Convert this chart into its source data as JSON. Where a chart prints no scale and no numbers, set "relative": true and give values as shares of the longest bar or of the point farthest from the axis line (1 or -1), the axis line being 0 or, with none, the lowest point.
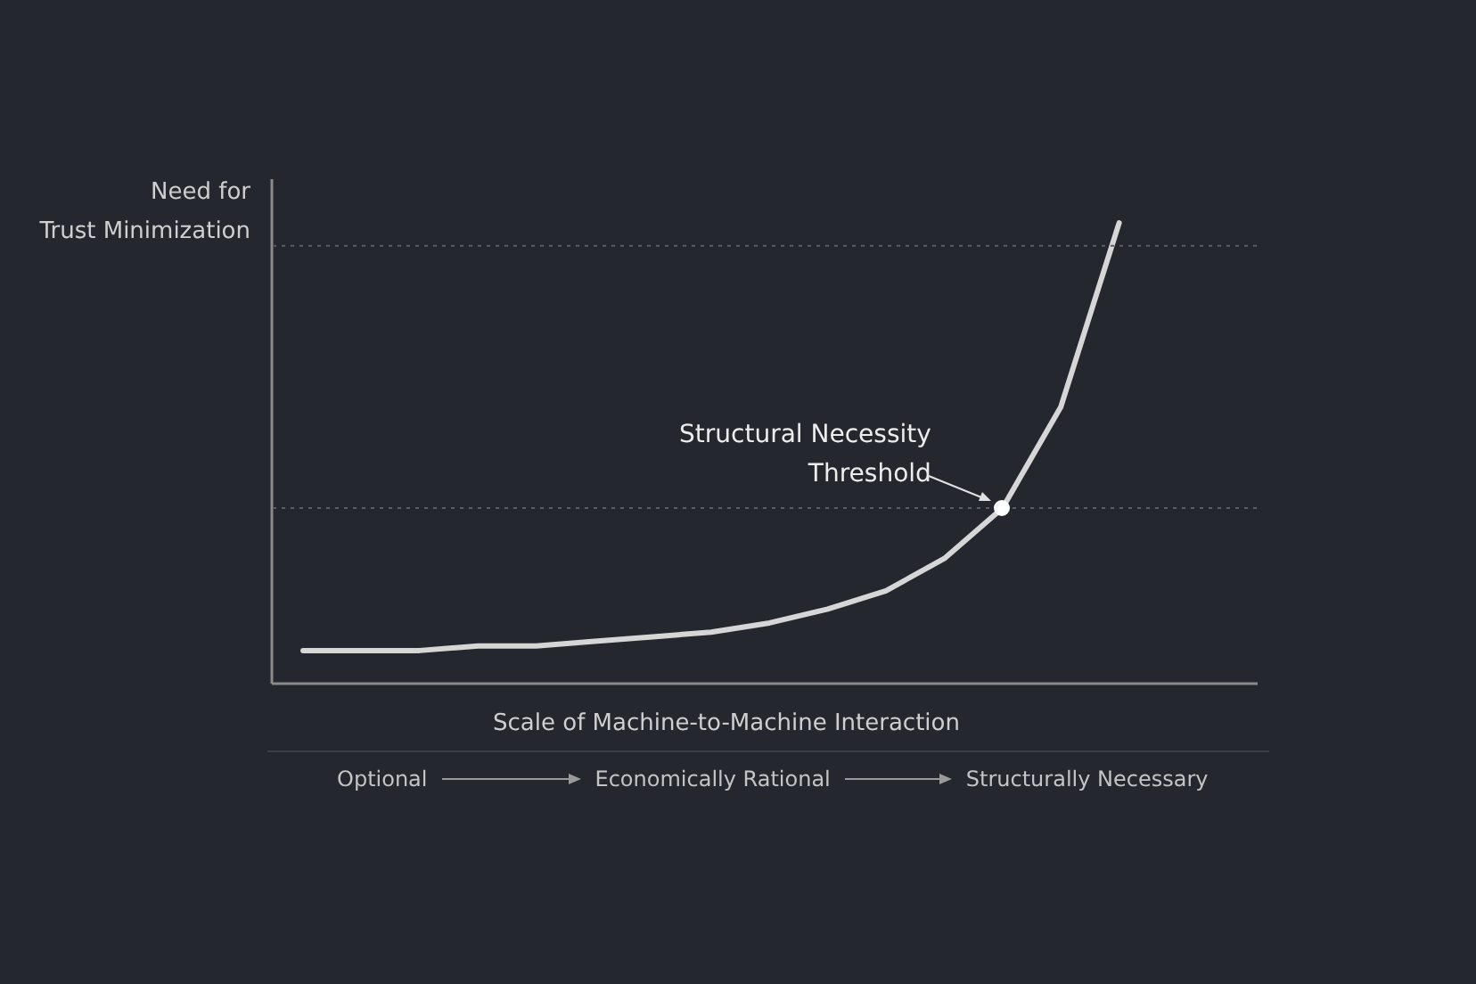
{
  "chart_data": {
    "type": "line",
    "relative": true,
    "xlabel": "Scale of Machine-to-Machine Interaction",
    "ylabel": "Need for\nTrust Minimization",
    "categories": [
      null,
      null,
      null,
      null,
      null,
      null,
      null,
      null,
      null,
      null,
      null,
      null,
      null,
      null,
      null
    ],
    "series": [
      {
        "color": "#d6d6d6",
        "values": [
          0.07,
          0.07,
          0.07,
          0.08,
          0.08,
          0.09,
          0.1,
          0.11,
          0.13,
          0.16,
          0.2,
          0.27,
          0.38,
          0.6,
          1
        ]
      }
    ],
    "ref_lines": [
      {
        "axis": "y",
        "value": 0.95,
        "line_style": "dotted"
      },
      {
        "axis": "y",
        "value": 0.38,
        "line_style": "dotted"
      }
    ],
    "annotations": [
      {
        "text": "Structural Necessity\nThreshold",
        "y": 0.38
      },
      "Optional",
      "Economically Rational",
      "Structurally Necessary"
    ],
    "grid": false
  }
}
